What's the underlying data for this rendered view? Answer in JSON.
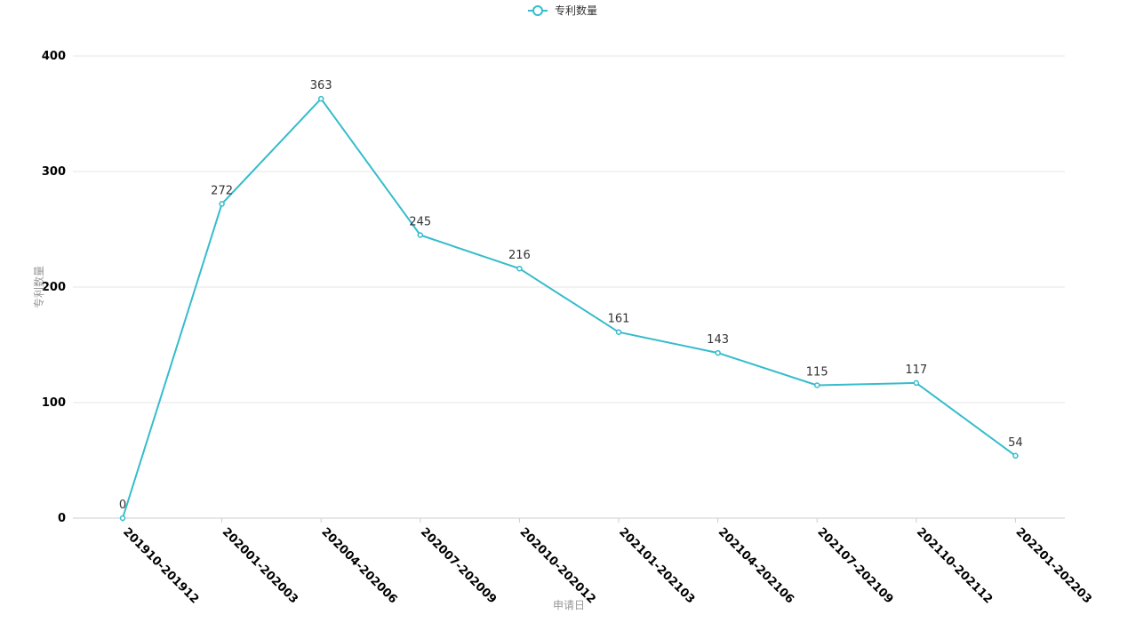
{
  "chart_data": {
    "type": "line",
    "categories": [
      "201910-201912",
      "202001-202003",
      "202004-202006",
      "202007-202009",
      "202010-202012",
      "202101-202103",
      "202104-202106",
      "202107-202109",
      "202110-202112",
      "202201-202203"
    ],
    "series": [
      {
        "name": "专利数量",
        "values": [
          0,
          272,
          363,
          245,
          216,
          161,
          143,
          115,
          117,
          54
        ],
        "color": "#36bccc"
      }
    ],
    "xlabel": "申请日",
    "ylabel": "专利数量",
    "ylim": [
      0,
      400
    ],
    "yticks": [
      0,
      100,
      200,
      300,
      400
    ],
    "grid": true,
    "legend": "top-center",
    "data_labels": true
  }
}
